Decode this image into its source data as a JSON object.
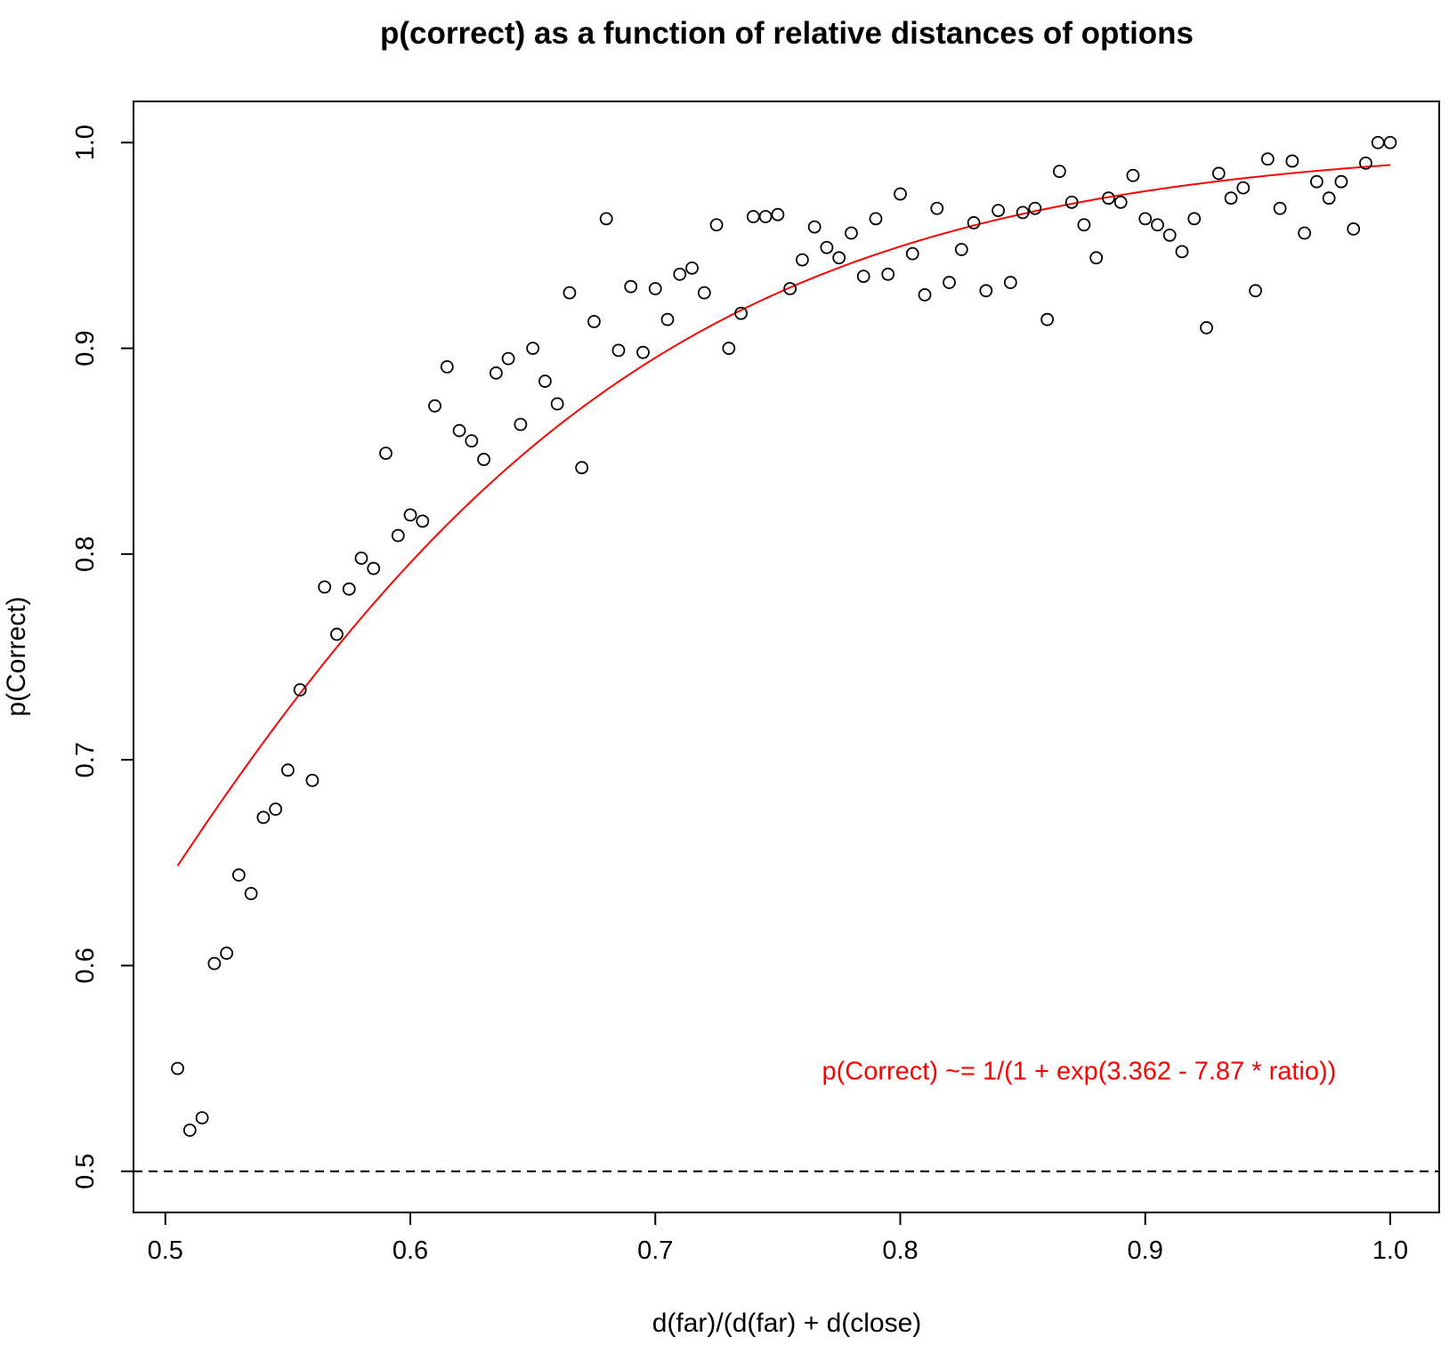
{
  "chart_data": {
    "type": "scatter",
    "title": "p(correct) as a function of relative distances of options",
    "xlabel": "d(far)/(d(far) + d(close)",
    "ylabel": "p(Correct)",
    "xlim": [
      0.487,
      1.02
    ],
    "ylim": [
      0.48,
      1.02
    ],
    "x_ticks": [
      0.5,
      0.6,
      0.7,
      0.8,
      0.9,
      1.0
    ],
    "x_tick_labels": [
      "0.5",
      "0.6",
      "0.7",
      "0.8",
      "0.9",
      "1.0"
    ],
    "y_ticks": [
      0.5,
      0.6,
      0.7,
      0.8,
      0.9,
      1.0
    ],
    "y_tick_labels": [
      "0.5",
      "0.6",
      "0.7",
      "0.8",
      "0.9",
      "1.0"
    ],
    "grid": false,
    "reference_line": {
      "y": 0.5,
      "style": "dashed",
      "color": "#000000"
    },
    "fit_curve": {
      "color": "#ff0000",
      "intercept": 3.362,
      "slope": 7.87,
      "x_range": [
        0.505,
        1.0
      ]
    },
    "annotation": {
      "text": "p(Correct) ~= 1/(1 + exp(3.362 - 7.87 * ratio))",
      "color": "#ff0000",
      "x": 0.873,
      "y": 0.549
    },
    "series": [
      {
        "marker": "open-circle",
        "color": "#000000",
        "points": [
          [
            0.505,
            0.55
          ],
          [
            0.51,
            0.52
          ],
          [
            0.515,
            0.526
          ],
          [
            0.52,
            0.601
          ],
          [
            0.525,
            0.606
          ],
          [
            0.53,
            0.644
          ],
          [
            0.535,
            0.635
          ],
          [
            0.54,
            0.672
          ],
          [
            0.545,
            0.676
          ],
          [
            0.55,
            0.695
          ],
          [
            0.555,
            0.734
          ],
          [
            0.56,
            0.69
          ],
          [
            0.565,
            0.784
          ],
          [
            0.57,
            0.761
          ],
          [
            0.575,
            0.783
          ],
          [
            0.58,
            0.798
          ],
          [
            0.585,
            0.793
          ],
          [
            0.59,
            0.849
          ],
          [
            0.595,
            0.809
          ],
          [
            0.6,
            0.819
          ],
          [
            0.605,
            0.816
          ],
          [
            0.61,
            0.872
          ],
          [
            0.615,
            0.891
          ],
          [
            0.62,
            0.86
          ],
          [
            0.625,
            0.855
          ],
          [
            0.63,
            0.846
          ],
          [
            0.635,
            0.888
          ],
          [
            0.64,
            0.895
          ],
          [
            0.645,
            0.863
          ],
          [
            0.65,
            0.9
          ],
          [
            0.655,
            0.884
          ],
          [
            0.66,
            0.873
          ],
          [
            0.665,
            0.927
          ],
          [
            0.67,
            0.842
          ],
          [
            0.675,
            0.913
          ],
          [
            0.68,
            0.963
          ],
          [
            0.685,
            0.899
          ],
          [
            0.69,
            0.93
          ],
          [
            0.695,
            0.898
          ],
          [
            0.7,
            0.929
          ],
          [
            0.705,
            0.914
          ],
          [
            0.71,
            0.936
          ],
          [
            0.715,
            0.939
          ],
          [
            0.72,
            0.927
          ],
          [
            0.725,
            0.96
          ],
          [
            0.73,
            0.9
          ],
          [
            0.735,
            0.917
          ],
          [
            0.74,
            0.964
          ],
          [
            0.745,
            0.964
          ],
          [
            0.75,
            0.965
          ],
          [
            0.755,
            0.929
          ],
          [
            0.76,
            0.943
          ],
          [
            0.765,
            0.959
          ],
          [
            0.77,
            0.949
          ],
          [
            0.775,
            0.944
          ],
          [
            0.78,
            0.956
          ],
          [
            0.785,
            0.935
          ],
          [
            0.79,
            0.963
          ],
          [
            0.795,
            0.936
          ],
          [
            0.8,
            0.975
          ],
          [
            0.805,
            0.946
          ],
          [
            0.81,
            0.926
          ],
          [
            0.815,
            0.968
          ],
          [
            0.82,
            0.932
          ],
          [
            0.825,
            0.948
          ],
          [
            0.83,
            0.961
          ],
          [
            0.835,
            0.928
          ],
          [
            0.84,
            0.967
          ],
          [
            0.845,
            0.932
          ],
          [
            0.85,
            0.966
          ],
          [
            0.855,
            0.968
          ],
          [
            0.86,
            0.914
          ],
          [
            0.865,
            0.986
          ],
          [
            0.87,
            0.971
          ],
          [
            0.875,
            0.96
          ],
          [
            0.88,
            0.944
          ],
          [
            0.885,
            0.973
          ],
          [
            0.89,
            0.971
          ],
          [
            0.895,
            0.984
          ],
          [
            0.9,
            0.963
          ],
          [
            0.905,
            0.96
          ],
          [
            0.91,
            0.955
          ],
          [
            0.915,
            0.947
          ],
          [
            0.92,
            0.963
          ],
          [
            0.925,
            0.91
          ],
          [
            0.93,
            0.985
          ],
          [
            0.935,
            0.973
          ],
          [
            0.94,
            0.978
          ],
          [
            0.945,
            0.928
          ],
          [
            0.95,
            0.992
          ],
          [
            0.955,
            0.968
          ],
          [
            0.96,
            0.991
          ],
          [
            0.965,
            0.956
          ],
          [
            0.97,
            0.981
          ],
          [
            0.975,
            0.973
          ],
          [
            0.98,
            0.981
          ],
          [
            0.985,
            0.958
          ],
          [
            0.99,
            0.99
          ],
          [
            0.995,
            1.0
          ],
          [
            1.0,
            1.0
          ]
        ]
      }
    ]
  }
}
